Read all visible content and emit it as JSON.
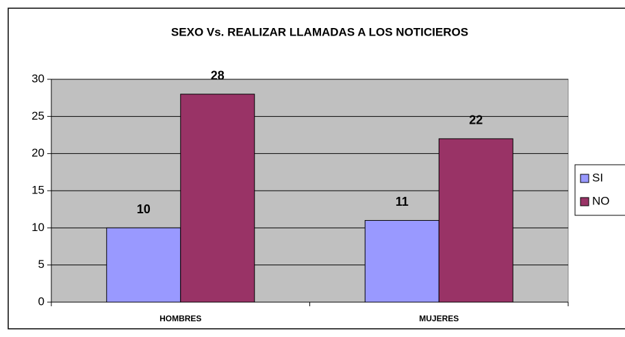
{
  "chart_data": {
    "type": "bar",
    "title": "SEXO Vs. REALIZAR LLAMADAS A LOS NOTICIEROS",
    "categories": [
      "HOMBRES",
      "MUJERES"
    ],
    "series": [
      {
        "name": "SI",
        "color": "#9999ff",
        "values": [
          10,
          11
        ]
      },
      {
        "name": "NO",
        "color": "#993366",
        "values": [
          28,
          22
        ]
      }
    ],
    "ylim": [
      0,
      30
    ],
    "yticks": [
      0,
      5,
      10,
      15,
      20,
      25,
      30
    ],
    "grid": true,
    "legend": "right"
  }
}
